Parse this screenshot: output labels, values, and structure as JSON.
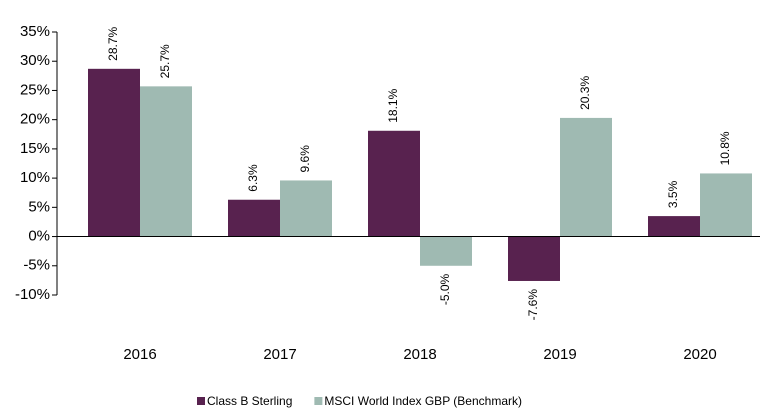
{
  "chart_data": {
    "type": "bar",
    "categories": [
      "2016",
      "2017",
      "2018",
      "2019",
      "2020"
    ],
    "series": [
      {
        "name": "Class B Sterling",
        "color": "#58224f",
        "values": [
          28.7,
          6.3,
          18.1,
          -7.6,
          3.5
        ],
        "value_labels": [
          "28.7%",
          "6.3%",
          "18.1%",
          "-7.6%",
          "3.5%"
        ]
      },
      {
        "name": "MSCI World Index GBP (Benchmark)",
        "color": "#9fbab2",
        "values": [
          25.7,
          9.6,
          -5.0,
          20.3,
          10.8
        ],
        "value_labels": [
          "25.7%",
          "9.6%",
          "-5.0%",
          "20.3%",
          "10.8%"
        ]
      }
    ],
    "ylim": [
      -10,
      35
    ],
    "yticks": [
      {
        "value": -10,
        "label": "-10%"
      },
      {
        "value": -5,
        "label": "-5%"
      },
      {
        "value": 0,
        "label": "0%"
      },
      {
        "value": 5,
        "label": "5%"
      },
      {
        "value": 10,
        "label": "10%"
      },
      {
        "value": 15,
        "label": "15%"
      },
      {
        "value": 20,
        "label": "20%"
      },
      {
        "value": 25,
        "label": "25%"
      },
      {
        "value": 30,
        "label": "30%"
      },
      {
        "value": 35,
        "label": "35%"
      }
    ],
    "legend": "bottom"
  }
}
